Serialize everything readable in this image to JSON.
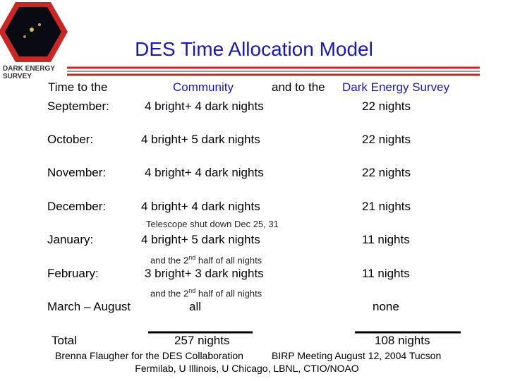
{
  "logo": {
    "line1": "DARK ENERGY",
    "line2": "SURVEY"
  },
  "title": "DES Time Allocation Model",
  "header": {
    "lead": "Time to the",
    "community": "Community",
    "middle": "and to the",
    "des": "Dark Energy Survey"
  },
  "rows": [
    [
      "September:",
      "4 bright+ 4 dark nights",
      "22 nights"
    ],
    [
      "October:",
      "4 bright+ 5 dark nights",
      "22 nights"
    ],
    [
      "November:",
      "4 bright+ 4 dark nights",
      "22 nights"
    ],
    [
      "December:",
      "4 bright+ 4 dark nights",
      "21 nights"
    ],
    [
      "January:",
      "4 bright+ 5 dark nights",
      "11 nights"
    ],
    [
      "February:",
      "3 bright+ 3 dark nights",
      "11 nights"
    ],
    [
      "March – August",
      "all",
      "none"
    ]
  ],
  "notes": {
    "shutdown": "Telescope shut down Dec 25, 31",
    "half_1": [
      "and the 2",
      "nd",
      " half of all nights"
    ],
    "half_2": [
      "and the 2",
      "nd",
      " half of all nights"
    ]
  },
  "total": {
    "label": "Total",
    "community": "257 nights",
    "des": "108 nights"
  },
  "footer": {
    "author": "Brenna Flaugher for the DES Collaboration",
    "meeting": "BIRP Meeting August 12, 2004 Tucson",
    "institutions": "Fermilab, U Illinois, U Chicago, LBNL, CTIO/NOAO"
  }
}
